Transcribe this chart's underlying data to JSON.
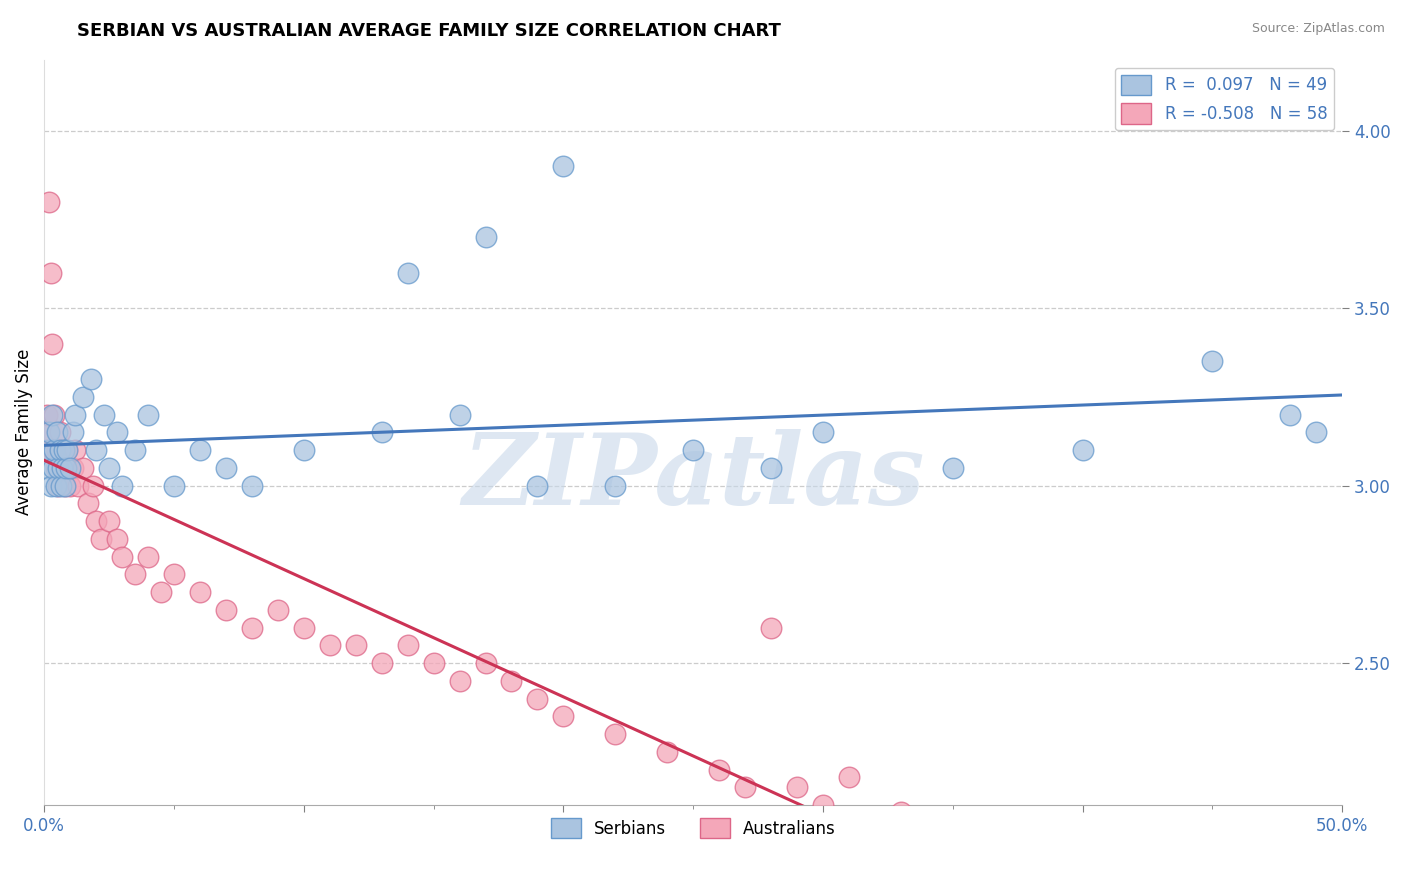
{
  "title": "SERBIAN VS AUSTRALIAN AVERAGE FAMILY SIZE CORRELATION CHART",
  "source": "Source: ZipAtlas.com",
  "ylabel": "Average Family Size",
  "xlim": [
    0.0,
    50.0
  ],
  "ylim": [
    2.1,
    4.2
  ],
  "yticks_right": [
    2.5,
    3.0,
    3.5,
    4.0
  ],
  "serbian_color": "#aac4e0",
  "australian_color": "#f4a7b9",
  "serbian_edge": "#6699cc",
  "australian_edge": "#dd6688",
  "trend_serbian_color": "#4477bb",
  "trend_australian_color": "#cc3355",
  "R_serbian": 0.097,
  "N_serbian": 49,
  "R_australian": -0.508,
  "N_australian": 58,
  "watermark": "ZIPatlas",
  "watermark_color": "#c8d8ea",
  "background_color": "#ffffff",
  "serbian_x": [
    0.1,
    0.15,
    0.2,
    0.25,
    0.3,
    0.35,
    0.4,
    0.45,
    0.5,
    0.55,
    0.6,
    0.65,
    0.7,
    0.75,
    0.8,
    0.85,
    0.9,
    1.0,
    1.1,
    1.2,
    1.5,
    1.8,
    2.0,
    2.3,
    2.5,
    2.8,
    3.0,
    3.5,
    4.0,
    5.0,
    6.0,
    7.0,
    8.0,
    10.0,
    13.0,
    16.0,
    19.0,
    22.0,
    25.0,
    28.0,
    30.0,
    35.0,
    40.0,
    45.0,
    48.0,
    49.0,
    14.0,
    17.0,
    20.0
  ],
  "serbian_y": [
    3.05,
    3.1,
    3.15,
    3.0,
    3.2,
    3.05,
    3.1,
    3.0,
    3.15,
    3.05,
    3.1,
    3.0,
    3.05,
    3.1,
    3.0,
    3.05,
    3.1,
    3.05,
    3.15,
    3.2,
    3.25,
    3.3,
    3.1,
    3.2,
    3.05,
    3.15,
    3.0,
    3.1,
    3.2,
    3.0,
    3.1,
    3.05,
    3.0,
    3.1,
    3.15,
    3.2,
    3.0,
    3.0,
    3.1,
    3.05,
    3.15,
    3.05,
    3.1,
    3.35,
    3.2,
    3.15,
    3.6,
    3.7,
    3.9
  ],
  "australian_x": [
    0.05,
    0.1,
    0.15,
    0.2,
    0.25,
    0.3,
    0.35,
    0.4,
    0.45,
    0.5,
    0.55,
    0.6,
    0.65,
    0.7,
    0.75,
    0.8,
    0.85,
    0.9,
    1.0,
    1.1,
    1.2,
    1.3,
    1.5,
    1.7,
    1.9,
    2.0,
    2.2,
    2.5,
    2.8,
    3.0,
    3.5,
    4.0,
    4.5,
    5.0,
    6.0,
    7.0,
    8.0,
    9.0,
    10.0,
    11.0,
    12.0,
    13.0,
    14.0,
    15.0,
    16.0,
    17.0,
    18.0,
    19.0,
    20.0,
    22.0,
    24.0,
    26.0,
    27.0,
    28.0,
    29.0,
    30.0,
    31.0,
    33.0
  ],
  "australian_y": [
    3.1,
    3.2,
    3.15,
    3.8,
    3.6,
    3.4,
    3.1,
    3.2,
    3.05,
    3.1,
    3.0,
    3.15,
    3.1,
    3.05,
    3.1,
    3.0,
    3.05,
    3.1,
    3.0,
    3.05,
    3.1,
    3.0,
    3.05,
    2.95,
    3.0,
    2.9,
    2.85,
    2.9,
    2.85,
    2.8,
    2.75,
    2.8,
    2.7,
    2.75,
    2.7,
    2.65,
    2.6,
    2.65,
    2.6,
    2.55,
    2.55,
    2.5,
    2.55,
    2.5,
    2.45,
    2.5,
    2.45,
    2.4,
    2.35,
    2.3,
    2.25,
    2.2,
    2.15,
    2.6,
    2.15,
    2.1,
    2.18,
    2.08
  ]
}
